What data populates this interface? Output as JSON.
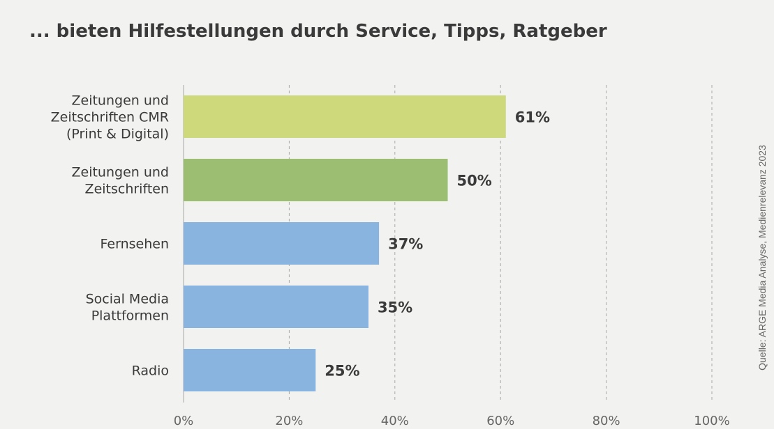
{
  "chart_data": {
    "type": "bar",
    "orientation": "horizontal",
    "title": "... bieten Hilfestellungen durch Service, Tipps, Ratgeber",
    "source": "Quelle: ARGE Media Analyse, Medienrelevanz 2023",
    "categories": [
      [
        "Zeitungen und",
        "Zeitschriften CMR",
        "(Print & Digital)"
      ],
      [
        "Zeitungen und",
        "Zeitschriften"
      ],
      [
        "Fernsehen"
      ],
      [
        "Social Media",
        "Plattformen"
      ],
      [
        "Radio"
      ]
    ],
    "values": [
      61,
      50,
      37,
      35,
      25
    ],
    "value_labels": [
      "61%",
      "50%",
      "37%",
      "35%",
      "25%"
    ],
    "colors": [
      "#cdd97a",
      "#9bbe72",
      "#8ab4e0",
      "#8ab4e0",
      "#8ab4e0"
    ],
    "xlim": [
      0,
      100
    ],
    "xticks": [
      0,
      20,
      40,
      60,
      80,
      100
    ],
    "xtick_labels": [
      "0%",
      "20%",
      "40%",
      "60%",
      "80%",
      "100%"
    ],
    "grid": true,
    "legend": "none"
  }
}
